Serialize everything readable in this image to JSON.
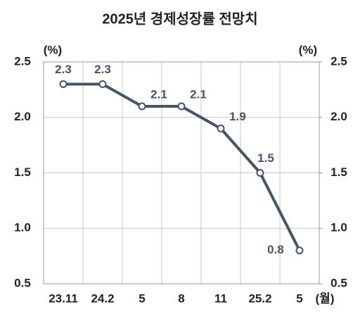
{
  "chart_data": {
    "type": "line",
    "title": "2025년 경제성장률 전망치",
    "y_unit": "(%)",
    "y2_unit": "(%)",
    "x_unit": "(월)",
    "categories": [
      "23.11",
      "24.2",
      "5",
      "8",
      "11",
      "25.2",
      "5"
    ],
    "series": [
      {
        "name": "경제성장률 전망치",
        "color": "#44546a",
        "values": [
          2.3,
          2.3,
          2.1,
          2.1,
          1.9,
          1.5,
          0.8
        ]
      }
    ],
    "ylim": [
      0.5,
      2.5
    ],
    "yticks": [
      0.5,
      {
        "value": 1,
        "label": "1.0"
      },
      1.5,
      {
        "value": 2,
        "label": "2.0"
      },
      2.5
    ],
    "y2lim": [
      0.5,
      2.5
    ],
    "y2ticks": [
      0.5,
      {
        "value": 1,
        "label": "1.0"
      },
      1.5,
      {
        "value": 2,
        "label": "2.0"
      },
      2.5
    ],
    "grid": true
  }
}
